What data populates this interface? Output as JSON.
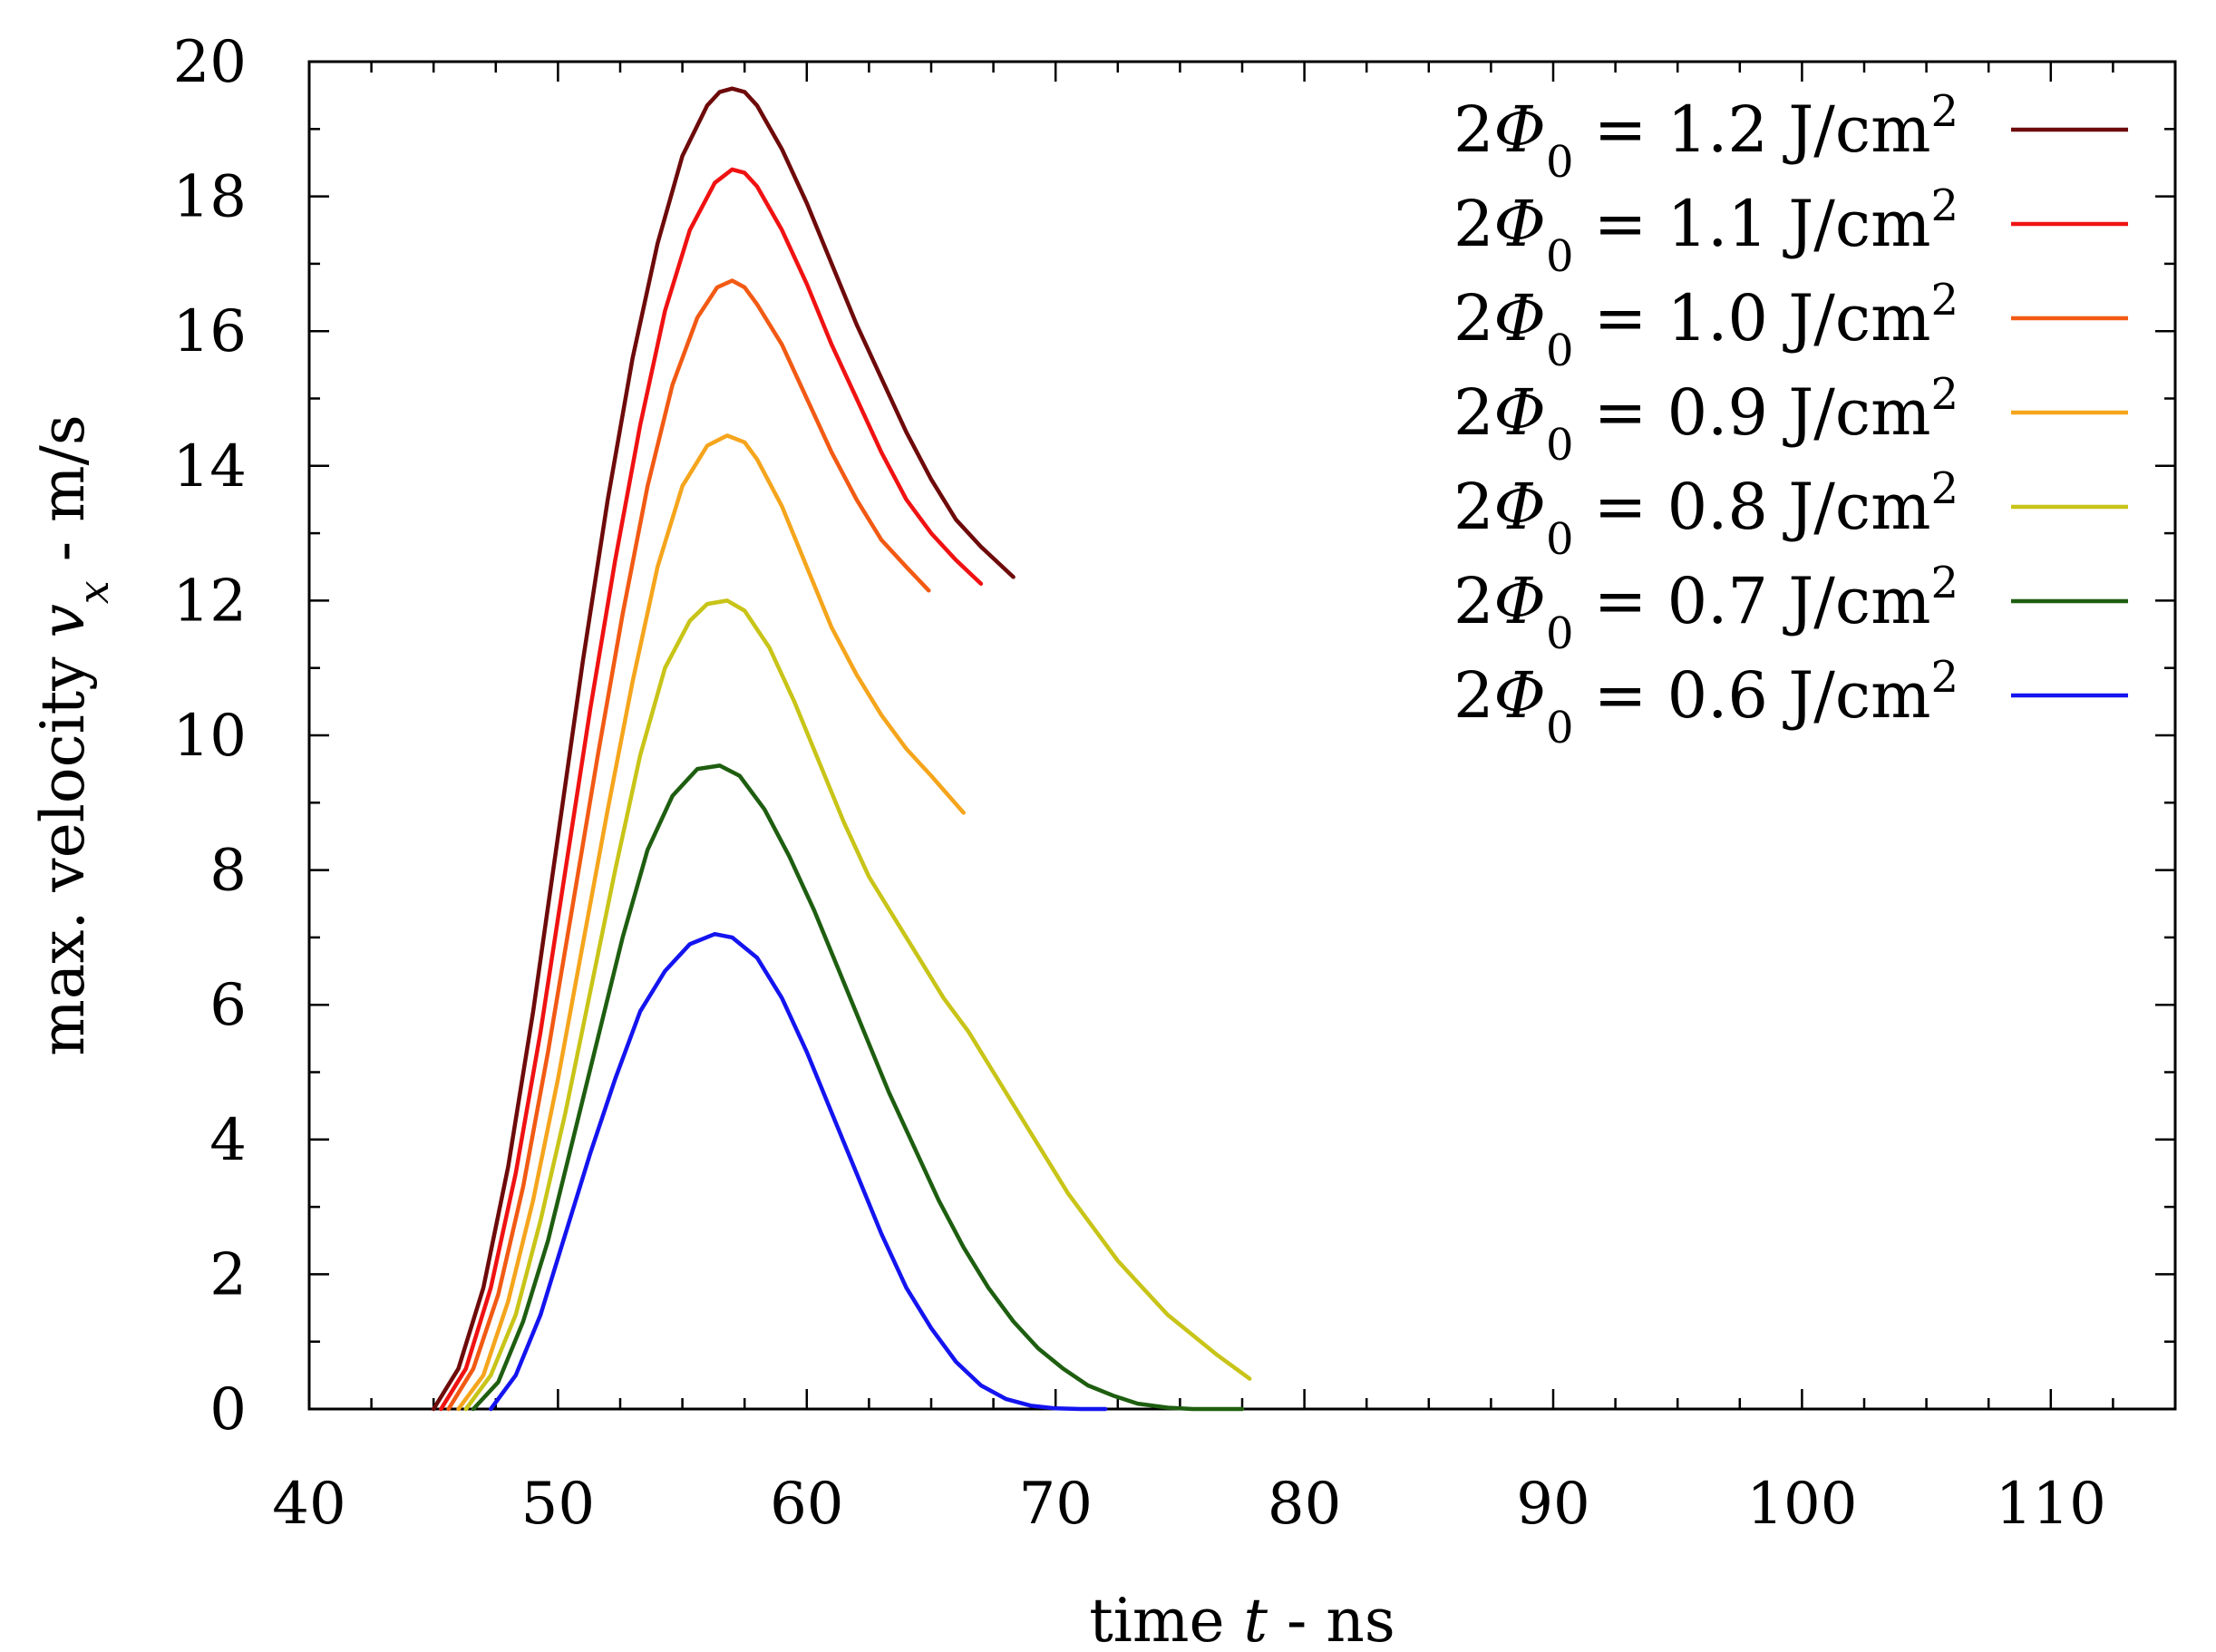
{
  "chart_data": {
    "type": "line",
    "title": "",
    "xlabel": {
      "prefix": "time ",
      "var": "t",
      "suffix": " - ns"
    },
    "ylabel": {
      "prefix": "max. velocity ",
      "var": "v",
      "sub": "x",
      "suffix": " - m/s"
    },
    "xlim": [
      40,
      115
    ],
    "ylim": [
      0,
      20
    ],
    "xticks": [
      40,
      50,
      60,
      70,
      80,
      90,
      100,
      110
    ],
    "yticks": [
      0,
      2,
      4,
      6,
      8,
      10,
      12,
      14,
      16,
      18,
      20
    ],
    "grid": false,
    "legend_position": "top-right",
    "series": [
      {
        "name": "2Φ0 = 1.2 J/cm2",
        "label": {
          "lead": "2",
          "sym": "Φ",
          "sub": "0",
          "rest": " = 1.2 J/cm",
          "sup": "2"
        },
        "color": "#6e0a0a",
        "points": [
          [
            45.0,
            0
          ],
          [
            46.0,
            0.6
          ],
          [
            47.0,
            1.8
          ],
          [
            48.0,
            3.6
          ],
          [
            49.0,
            5.9
          ],
          [
            50.0,
            8.5
          ],
          [
            51.0,
            11.1
          ],
          [
            52.0,
            13.5
          ],
          [
            53.0,
            15.6
          ],
          [
            54.0,
            17.3
          ],
          [
            55.0,
            18.6
          ],
          [
            56.0,
            19.35
          ],
          [
            56.5,
            19.55
          ],
          [
            57.0,
            19.6
          ],
          [
            57.5,
            19.55
          ],
          [
            58.0,
            19.35
          ],
          [
            59.0,
            18.7
          ],
          [
            60.0,
            17.9
          ],
          [
            61.0,
            17.0
          ],
          [
            62.0,
            16.1
          ],
          [
            63.0,
            15.3
          ],
          [
            64.0,
            14.5
          ],
          [
            65.0,
            13.8
          ],
          [
            66.0,
            13.2
          ],
          [
            67.0,
            12.8
          ],
          [
            68.3,
            12.35
          ]
        ]
      },
      {
        "name": "2Φ0 = 1.1 J/cm2",
        "label": {
          "lead": "2",
          "sym": "Φ",
          "sub": "0",
          "rest": " = 1.1 J/cm",
          "sup": "2"
        },
        "color": "#f01212",
        "points": [
          [
            45.3,
            0
          ],
          [
            46.3,
            0.6
          ],
          [
            47.3,
            1.8
          ],
          [
            48.3,
            3.5
          ],
          [
            49.3,
            5.6
          ],
          [
            50.3,
            8.0
          ],
          [
            51.3,
            10.4
          ],
          [
            52.3,
            12.6
          ],
          [
            53.3,
            14.6
          ],
          [
            54.3,
            16.3
          ],
          [
            55.3,
            17.5
          ],
          [
            56.3,
            18.2
          ],
          [
            57.0,
            18.4
          ],
          [
            57.5,
            18.35
          ],
          [
            58.0,
            18.15
          ],
          [
            59.0,
            17.5
          ],
          [
            60.0,
            16.7
          ],
          [
            61.0,
            15.8
          ],
          [
            62.0,
            15.0
          ],
          [
            63.0,
            14.2
          ],
          [
            64.0,
            13.5
          ],
          [
            65.0,
            13.0
          ],
          [
            66.0,
            12.6
          ],
          [
            67.0,
            12.25
          ]
        ]
      },
      {
        "name": "2Φ0 = 1.0 J/cm2",
        "label": {
          "lead": "2",
          "sym": "Φ",
          "sub": "0",
          "rest": " = 1.0 J/cm",
          "sup": "2"
        },
        "color": "#f25a14",
        "points": [
          [
            45.6,
            0
          ],
          [
            46.6,
            0.6
          ],
          [
            47.6,
            1.7
          ],
          [
            48.6,
            3.3
          ],
          [
            49.6,
            5.3
          ],
          [
            50.6,
            7.5
          ],
          [
            51.6,
            9.7
          ],
          [
            52.6,
            11.8
          ],
          [
            53.6,
            13.7
          ],
          [
            54.6,
            15.2
          ],
          [
            55.6,
            16.2
          ],
          [
            56.4,
            16.65
          ],
          [
            57.0,
            16.75
          ],
          [
            57.5,
            16.65
          ],
          [
            58.0,
            16.4
          ],
          [
            59.0,
            15.8
          ],
          [
            60.0,
            15.0
          ],
          [
            61.0,
            14.2
          ],
          [
            62.0,
            13.5
          ],
          [
            63.0,
            12.9
          ],
          [
            64.0,
            12.5
          ],
          [
            64.9,
            12.15
          ]
        ]
      },
      {
        "name": "2Φ0 = 0.9 J/cm2",
        "label": {
          "lead": "2",
          "sym": "Φ",
          "sub": "0",
          "rest": " = 0.9 J/cm",
          "sup": "2"
        },
        "color": "#f5a51c",
        "points": [
          [
            46.0,
            0
          ],
          [
            47.0,
            0.5
          ],
          [
            48.0,
            1.6
          ],
          [
            49.0,
            3.1
          ],
          [
            50.0,
            4.9
          ],
          [
            51.0,
            6.9
          ],
          [
            52.0,
            8.9
          ],
          [
            53.0,
            10.8
          ],
          [
            54.0,
            12.5
          ],
          [
            55.0,
            13.7
          ],
          [
            56.0,
            14.3
          ],
          [
            56.8,
            14.45
          ],
          [
            57.5,
            14.35
          ],
          [
            58.0,
            14.1
          ],
          [
            59.0,
            13.4
          ],
          [
            60.0,
            12.5
          ],
          [
            61.0,
            11.6
          ],
          [
            62.0,
            10.9
          ],
          [
            63.0,
            10.3
          ],
          [
            64.0,
            9.8
          ],
          [
            65.0,
            9.4
          ],
          [
            66.3,
            8.85
          ]
        ]
      },
      {
        "name": "2Φ0 = 0.8 J/cm2",
        "label": {
          "lead": "2",
          "sym": "Φ",
          "sub": "0",
          "rest": " = 0.8 J/cm",
          "sup": "2"
        },
        "color": "#c8c418",
        "points": [
          [
            46.3,
            0
          ],
          [
            47.3,
            0.5
          ],
          [
            48.3,
            1.4
          ],
          [
            49.3,
            2.8
          ],
          [
            50.3,
            4.4
          ],
          [
            51.3,
            6.2
          ],
          [
            52.3,
            8.0
          ],
          [
            53.3,
            9.7
          ],
          [
            54.3,
            11.0
          ],
          [
            55.3,
            11.7
          ],
          [
            56.0,
            11.95
          ],
          [
            56.8,
            12.0
          ],
          [
            57.5,
            11.85
          ],
          [
            58.5,
            11.3
          ],
          [
            59.5,
            10.5
          ],
          [
            60.5,
            9.6
          ],
          [
            61.5,
            8.7
          ],
          [
            62.5,
            7.9
          ],
          [
            63.5,
            7.3
          ],
          [
            64.5,
            6.7
          ],
          [
            65.5,
            6.1
          ],
          [
            66.5,
            5.6
          ],
          [
            67.5,
            5.0
          ],
          [
            68.5,
            4.4
          ],
          [
            69.5,
            3.8
          ],
          [
            70.5,
            3.2
          ],
          [
            71.5,
            2.7
          ],
          [
            72.5,
            2.2
          ],
          [
            73.5,
            1.8
          ],
          [
            74.5,
            1.4
          ],
          [
            75.5,
            1.1
          ],
          [
            76.5,
            0.8
          ],
          [
            77.8,
            0.45
          ]
        ]
      },
      {
        "name": "2Φ0 = 0.7 J/cm2",
        "label": {
          "lead": "2",
          "sym": "Φ",
          "sub": "0",
          "rest": " = 0.7 J/cm",
          "sup": "2"
        },
        "color": "#1e5e10",
        "points": [
          [
            46.6,
            0
          ],
          [
            47.6,
            0.4
          ],
          [
            48.6,
            1.3
          ],
          [
            49.6,
            2.5
          ],
          [
            50.6,
            4.0
          ],
          [
            51.6,
            5.5
          ],
          [
            52.6,
            7.0
          ],
          [
            53.6,
            8.3
          ],
          [
            54.6,
            9.1
          ],
          [
            55.6,
            9.5
          ],
          [
            56.5,
            9.55
          ],
          [
            57.3,
            9.4
          ],
          [
            58.3,
            8.9
          ],
          [
            59.3,
            8.2
          ],
          [
            60.3,
            7.4
          ],
          [
            61.3,
            6.5
          ],
          [
            62.3,
            5.6
          ],
          [
            63.3,
            4.7
          ],
          [
            64.3,
            3.9
          ],
          [
            65.3,
            3.1
          ],
          [
            66.3,
            2.4
          ],
          [
            67.3,
            1.8
          ],
          [
            68.3,
            1.3
          ],
          [
            69.3,
            0.9
          ],
          [
            70.3,
            0.6
          ],
          [
            71.3,
            0.35
          ],
          [
            72.3,
            0.2
          ],
          [
            73.3,
            0.08
          ],
          [
            74.5,
            0.02
          ],
          [
            75.5,
            0.0
          ],
          [
            77.5,
            0.0
          ]
        ]
      },
      {
        "name": "2Φ0 = 0.6 J/cm2",
        "label": {
          "lead": "2",
          "sym": "Φ",
          "sub": "0",
          "rest": " = 0.6 J/cm",
          "sup": "2"
        },
        "color": "#1414f0",
        "points": [
          [
            47.3,
            0
          ],
          [
            48.3,
            0.5
          ],
          [
            49.3,
            1.4
          ],
          [
            50.3,
            2.6
          ],
          [
            51.3,
            3.8
          ],
          [
            52.3,
            4.9
          ],
          [
            53.3,
            5.9
          ],
          [
            54.3,
            6.5
          ],
          [
            55.3,
            6.9
          ],
          [
            56.3,
            7.05
          ],
          [
            57.0,
            7.0
          ],
          [
            58.0,
            6.7
          ],
          [
            59.0,
            6.1
          ],
          [
            60.0,
            5.3
          ],
          [
            61.0,
            4.4
          ],
          [
            62.0,
            3.5
          ],
          [
            63.0,
            2.6
          ],
          [
            64.0,
            1.8
          ],
          [
            65.0,
            1.2
          ],
          [
            66.0,
            0.7
          ],
          [
            67.0,
            0.35
          ],
          [
            68.0,
            0.15
          ],
          [
            69.0,
            0.05
          ],
          [
            70.0,
            0.01
          ],
          [
            71.0,
            0.0
          ],
          [
            72.0,
            0.0
          ]
        ]
      }
    ]
  }
}
